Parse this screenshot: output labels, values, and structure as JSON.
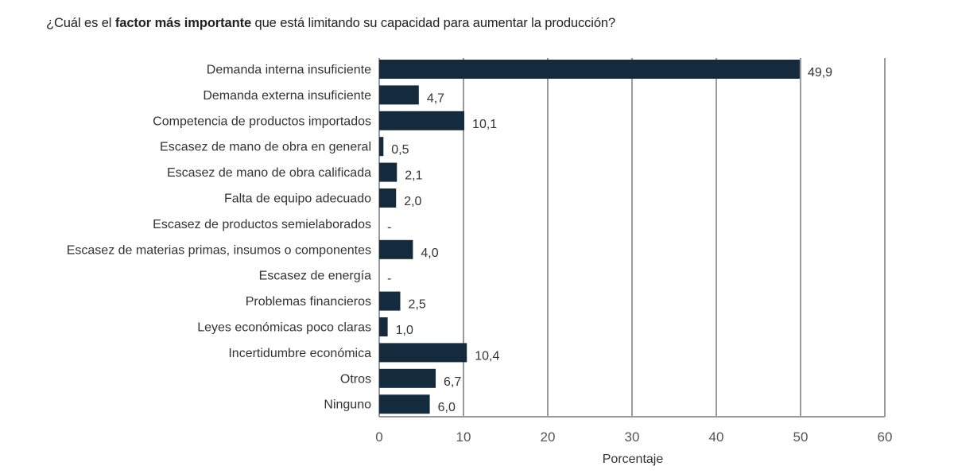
{
  "title": {
    "prefix": "¿Cuál es el ",
    "bold": "factor más importante",
    "suffix": " que está limitando su capacidad para aumentar la producción?"
  },
  "chart_data": {
    "type": "bar",
    "orientation": "horizontal",
    "title": "¿Cuál es el factor más importante que está limitando su capacidad para aumentar la producción?",
    "categories": [
      "Demanda interna insuficiente",
      "Demanda externa insuficiente",
      "Competencia de productos importados",
      "Escasez de mano de obra en general",
      "Escasez de mano de obra calificada",
      "Falta de equipo adecuado",
      "Escasez de productos semielaborados",
      "Escasez de materias primas, insumos o componentes",
      "Escasez de energía",
      "Problemas financieros",
      "Leyes económicas poco claras",
      "Incertidumbre económica",
      "Otros",
      "Ninguno"
    ],
    "values": [
      49.9,
      4.7,
      10.1,
      0.5,
      2.1,
      2.0,
      0,
      4.0,
      0,
      2.5,
      1.0,
      10.4,
      6.7,
      6.0
    ],
    "value_labels": [
      "49,9",
      "4,7",
      "10,1",
      "0,5",
      "2,1",
      "2,0",
      "-",
      "4,0",
      "-",
      "2,5",
      "1,0",
      "10,4",
      "6,7",
      "6,0"
    ],
    "xlabel": "Porcentaje",
    "ylabel": "",
    "xlim": [
      0,
      60
    ],
    "xticks": [
      0,
      10,
      20,
      30,
      40,
      50,
      60
    ],
    "grid": true,
    "bar_color": "#142b3d",
    "grid_color": "#9a9a9a"
  }
}
